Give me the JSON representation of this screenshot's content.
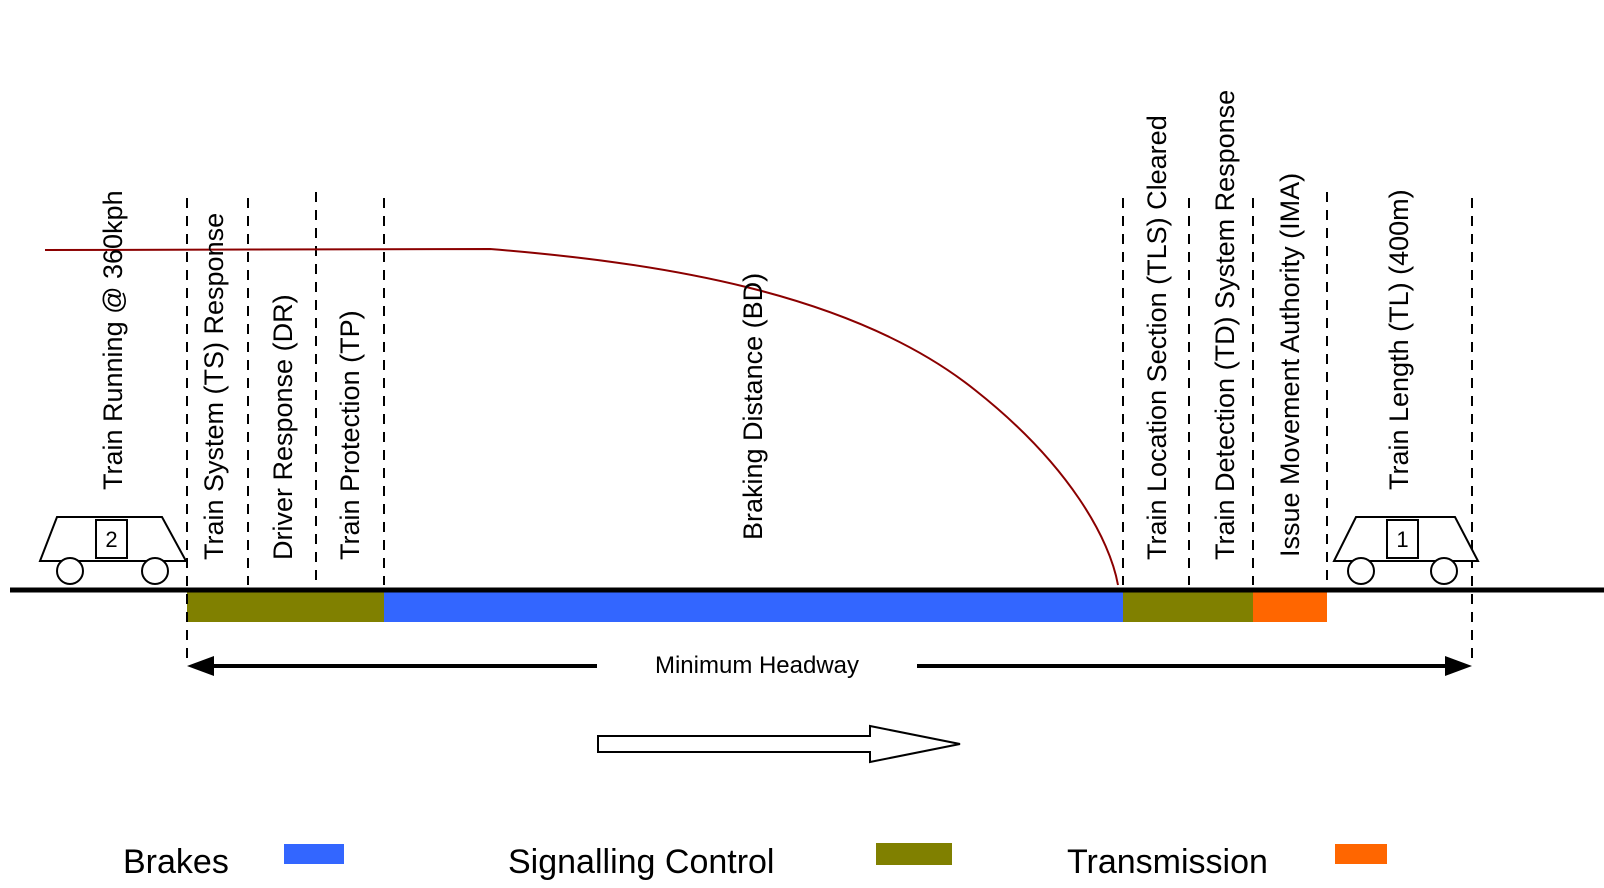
{
  "labels": {
    "train_running": "Train Running @ 360kph",
    "ts_response": "Train System (TS) Response",
    "driver_response": "Driver Response (DR)",
    "train_protection": "Train Protection (TP)",
    "braking_distance": "Braking Distance (BD)",
    "tls_cleared": "Train Location Section (TLS) Cleared",
    "td_response": "Train Detection (TD) System Response",
    "ima": "Issue Movement Authority (IMA)",
    "train_length": "Train Length (TL) (400m)",
    "minimum_headway": "Minimum Headway"
  },
  "trains": {
    "rear_number": "2",
    "front_number": "1"
  },
  "legend": {
    "brakes": "Brakes",
    "signalling_control": "Signalling Control",
    "transmission": "Transmission"
  },
  "colors": {
    "brakes": "#3366ff",
    "signalling_control": "#808000",
    "transmission": "#ff6600",
    "speed_curve": "#8b0000"
  }
}
